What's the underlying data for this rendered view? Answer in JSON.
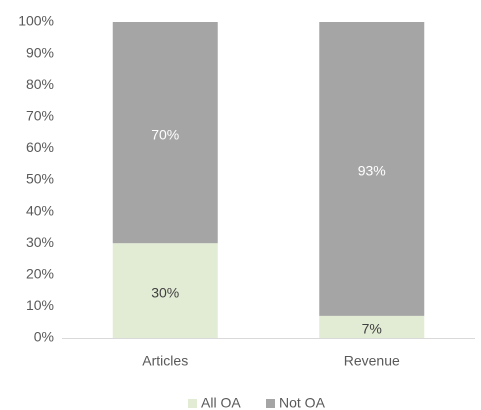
{
  "chart_data": {
    "type": "stacked_bar",
    "categories": [
      "Articles",
      "Revenue"
    ],
    "series": [
      {
        "name": "All OA",
        "color": "#e2ebd4",
        "values": [
          30,
          7
        ],
        "value_labels": [
          "30%",
          "7%"
        ]
      },
      {
        "name": "Not OA",
        "color": "#a5a5a5",
        "values": [
          70,
          93
        ],
        "value_labels": [
          "70%",
          "93%"
        ]
      }
    ],
    "ylim": [
      0,
      100
    ],
    "yticks": [
      {
        "value": 0,
        "label": "0%"
      },
      {
        "value": 10,
        "label": "10%"
      },
      {
        "value": 20,
        "label": "20%"
      },
      {
        "value": 30,
        "label": "30%"
      },
      {
        "value": 40,
        "label": "40%"
      },
      {
        "value": 50,
        "label": "50%"
      },
      {
        "value": 60,
        "label": "60%"
      },
      {
        "value": 70,
        "label": "70%"
      },
      {
        "value": 80,
        "label": "80%"
      },
      {
        "value": 90,
        "label": "90%"
      },
      {
        "value": 100,
        "label": "100%"
      }
    ],
    "grid": false,
    "legend": "bottom"
  }
}
